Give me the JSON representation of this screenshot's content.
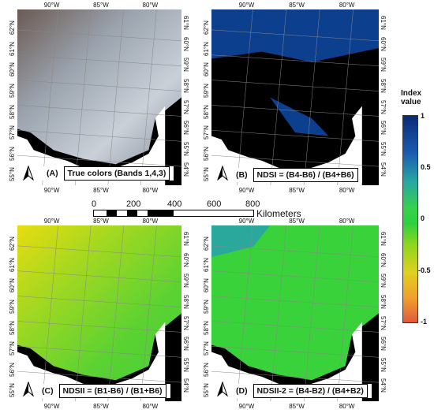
{
  "panels": [
    {
      "id": "A",
      "caption": "(A)  True colors (Bands 1,4,3)"
    },
    {
      "id": "B",
      "caption": "NDSI = (B4-B6) / (B4+B6)",
      "letter": "(B)"
    },
    {
      "id": "C",
      "caption": "NDSII = (B1-B6) / (B1+B6)",
      "letter": "(C)"
    },
    {
      "id": "D",
      "caption": "NDSII-2 = (B4-B2) / (B4+B2)",
      "letter": "(D)"
    }
  ],
  "panel_a_letter": "(A)",
  "panel_a_caption": "True colors (Bands 1,4,3)",
  "lon_labels": [
    "90°W",
    "85°W",
    "80°W"
  ],
  "lat_labels_left": [
    "62°N",
    "61°N",
    "60°N",
    "59°N",
    "58°N",
    "57°N",
    "56°N",
    "55°N"
  ],
  "lat_labels_right": [
    "61°N",
    "60°N",
    "59°N",
    "58°N",
    "57°N",
    "56°N",
    "55°N",
    "54°N"
  ],
  "north_label": "N",
  "scale": {
    "ticks": [
      "0",
      "200",
      "400",
      "600",
      "800"
    ],
    "unit": "Kilometers"
  },
  "colorbar": {
    "title_line1": "Index",
    "title_line2": "value",
    "ticks": [
      "1",
      "0.5",
      "0",
      "-0.5",
      "-1"
    ]
  },
  "colors": {
    "background": "#000000",
    "ndsi_blue": "#0d3f8f",
    "ndsii_green": "#36d23c",
    "ndsii_yellow": "#e6d21a"
  }
}
